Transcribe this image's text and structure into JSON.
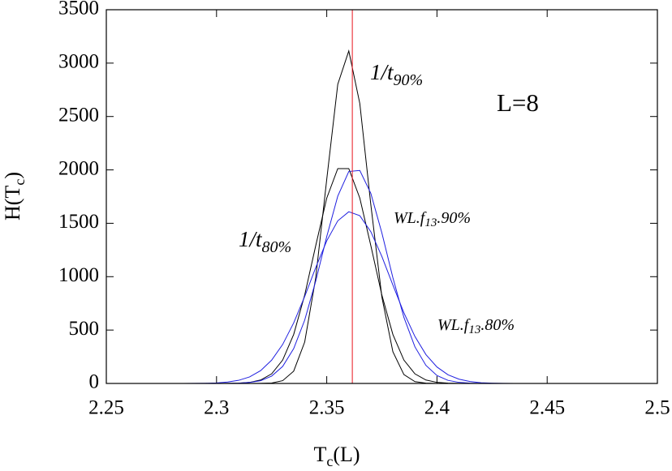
{
  "chart_data": {
    "type": "line",
    "x": [
      2.27,
      2.275,
      2.28,
      2.285,
      2.29,
      2.295,
      2.3,
      2.305,
      2.31,
      2.315,
      2.32,
      2.325,
      2.33,
      2.335,
      2.34,
      2.345,
      2.35,
      2.355,
      2.36,
      2.365,
      2.37,
      2.375,
      2.38,
      2.385,
      2.39,
      2.395,
      2.4,
      2.405,
      2.41,
      2.415,
      2.42,
      2.425,
      2.43,
      2.435,
      2.44,
      2.445,
      2.45
    ],
    "series": [
      {
        "color": "#000000",
        "values": [
          0,
          0,
          0,
          0,
          0,
          0,
          0,
          0,
          0,
          0,
          1,
          4,
          26,
          115,
          388,
          989,
          1912,
          2802,
          3114,
          2622,
          1674,
          810,
          297,
          83,
          17,
          3,
          0,
          0,
          0,
          0,
          0,
          0,
          0,
          0,
          0,
          0,
          0
        ]
      },
      {
        "color": "#000000",
        "values": [
          0,
          0,
          0,
          0,
          0,
          0,
          0,
          1,
          3,
          10,
          32,
          90,
          219,
          459,
          828,
          1291,
          1736,
          2012,
          2012,
          1736,
          1291,
          828,
          459,
          219,
          90,
          32,
          10,
          3,
          1,
          0,
          0,
          0,
          0,
          0,
          0,
          0,
          0
        ]
      },
      {
        "color": "#1f1fe0",
        "values": [
          0,
          0,
          0,
          0,
          0,
          0,
          0,
          1,
          3,
          9,
          26,
          69,
          159,
          326,
          593,
          959,
          1376,
          1754,
          1985,
          1995,
          1780,
          1410,
          991,
          619,
          343,
          169,
          74,
          29,
          10,
          3,
          1,
          0,
          0,
          0,
          0,
          0,
          0
        ]
      },
      {
        "color": "#1f1fe0",
        "values": [
          0,
          0,
          0,
          0,
          1,
          2,
          5,
          13,
          29,
          61,
          120,
          218,
          365,
          567,
          815,
          1085,
          1336,
          1523,
          1608,
          1571,
          1421,
          1190,
          922,
          662,
          440,
          270,
          154,
          81,
          40,
          18,
          7,
          3,
          1,
          0,
          0,
          0,
          0
        ]
      }
    ],
    "vline": {
      "x": 2.3616,
      "color": "#e8141e"
    },
    "xlim": [
      2.25,
      2.5
    ],
    "xticks": [
      2.25,
      2.3,
      2.35,
      2.4,
      2.45,
      2.5
    ],
    "ylim": [
      0,
      3500
    ],
    "yticks": [
      0,
      500,
      1000,
      1500,
      2000,
      2500,
      3000,
      3500
    ],
    "xlabel": {
      "main": "T",
      "sub": "c",
      "tail": "(L)"
    },
    "ylabel": {
      "main": "H(T",
      "sub": "c",
      "tail": ")"
    },
    "annotations": [
      {
        "main": "1/t",
        "sub": "90%"
      },
      {
        "main": "L=8"
      },
      {
        "main": "WL.f",
        "sub": "13",
        "tail": ".90%"
      },
      {
        "main": "1/t",
        "sub": "80%"
      },
      {
        "main": "WL.f",
        "sub": "13",
        "tail": ".80%"
      }
    ]
  }
}
